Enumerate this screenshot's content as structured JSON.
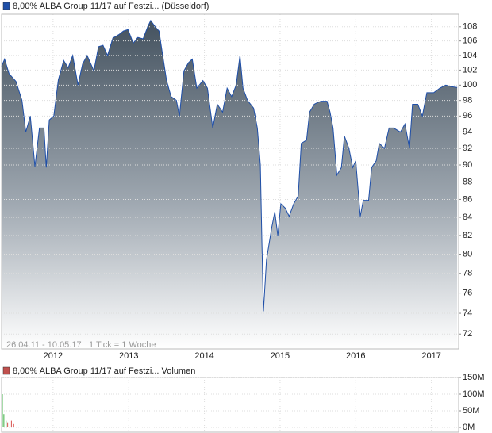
{
  "chart_data": [
    {
      "type": "area",
      "title": "8,00% ALBA Group 11/17 auf Festzi... (Düsseldorf)",
      "annotations": [
        "26.04.11 - 10.05.17",
        "1 Tick = 1 Woche"
      ],
      "color": "#1f4fa8",
      "log_scale": true,
      "grid": true,
      "xlim": [
        2011.32,
        2017.36
      ],
      "xticks": [
        2012,
        2013,
        2014,
        2015,
        2016,
        2017
      ],
      "ylim": [
        70.6,
        109.8
      ],
      "yticks": [
        72,
        74,
        76,
        78,
        80,
        82,
        84,
        86,
        88,
        90,
        92,
        94,
        96,
        98,
        100,
        102,
        104,
        106,
        108
      ],
      "x": [
        2011.32,
        2011.36,
        2011.42,
        2011.51,
        2011.59,
        2011.64,
        2011.7,
        2011.76,
        2011.82,
        2011.88,
        2011.91,
        2011.95,
        2012.01,
        2012.07,
        2012.14,
        2012.2,
        2012.26,
        2012.33,
        2012.39,
        2012.45,
        2012.54,
        2012.6,
        2012.66,
        2012.72,
        2012.79,
        2012.87,
        2012.93,
        2012.99,
        2013.06,
        2013.12,
        2013.19,
        2013.25,
        2013.29,
        2013.35,
        2013.4,
        2013.44,
        2013.5,
        2013.56,
        2013.63,
        2013.67,
        2013.73,
        2013.79,
        2013.84,
        2013.9,
        2013.98,
        2014.04,
        2014.11,
        2014.17,
        2014.24,
        2014.3,
        2014.36,
        2014.42,
        2014.47,
        2014.51,
        2014.57,
        2014.65,
        2014.7,
        2014.74,
        2014.76,
        2014.78,
        2014.82,
        2014.89,
        2014.93,
        2014.97,
        2015.01,
        2015.07,
        2015.12,
        2015.18,
        2015.24,
        2015.28,
        2015.35,
        2015.39,
        2015.45,
        2015.49,
        2015.54,
        2015.62,
        2015.66,
        2015.7,
        2015.75,
        2015.81,
        2015.85,
        2015.91,
        2015.96,
        2016.0,
        2016.06,
        2016.1,
        2016.17,
        2016.21,
        2016.27,
        2016.31,
        2016.38,
        2016.44,
        2016.5,
        2016.59,
        2016.65,
        2016.71,
        2016.75,
        2016.82,
        2016.88,
        2016.94,
        2017.03,
        2017.11,
        2017.19,
        2017.26,
        2017.34
      ],
      "values": [
        102.5,
        103.5,
        101.5,
        100.5,
        98,
        94,
        96,
        89.8,
        94.5,
        94.5,
        89.7,
        95.5,
        96,
        100.7,
        103.3,
        102.3,
        104,
        100,
        102.8,
        104,
        101.9,
        105.2,
        105.4,
        104,
        106.4,
        106.9,
        107.4,
        107.6,
        105.7,
        106.5,
        106.3,
        108,
        108.9,
        108,
        107.4,
        104.6,
        100.6,
        98.5,
        98,
        96,
        101.9,
        103,
        103.5,
        99.6,
        100.6,
        99.6,
        94.5,
        97.5,
        96.5,
        99.6,
        98.5,
        100,
        104,
        99.6,
        98,
        97,
        94.5,
        90,
        81,
        74.2,
        79.4,
        82.9,
        84.6,
        82,
        85.5,
        85,
        84.1,
        85.5,
        86.4,
        92.6,
        93,
        96.5,
        97.5,
        97.7,
        97.9,
        97.9,
        96.5,
        94.5,
        88.8,
        89.7,
        93.5,
        92,
        89.7,
        90.5,
        84.1,
        85.9,
        85.9,
        89.7,
        90.5,
        92.6,
        92,
        94.5,
        94.5,
        94,
        95,
        92,
        97.5,
        97.5,
        96,
        99,
        99,
        99.6,
        100,
        99.8,
        99.7
      ]
    },
    {
      "type": "bar",
      "title": "8,00% ALBA Group 11/17 auf Festzi... Volumen",
      "legend_color": "#c0504d",
      "grid": true,
      "xlim": [
        2011.32,
        2017.36
      ],
      "ylim": [
        0,
        150
      ],
      "yticks": [
        {
          "value": 0,
          "label": "0M"
        },
        {
          "value": 50,
          "label": "50M"
        },
        {
          "value": 100,
          "label": "100M"
        },
        {
          "value": 150,
          "label": "150M"
        }
      ],
      "x": [
        2011.33,
        2011.35,
        2011.38,
        2011.4,
        2011.43,
        2011.45,
        2011.48
      ],
      "values": [
        100,
        40,
        20,
        15,
        40,
        20,
        10
      ],
      "colors": [
        "#3cb043",
        "#3cb043",
        "#3cb043",
        "#d9534f",
        "#d9534f",
        "#d9534f",
        "#d9534f"
      ]
    }
  ]
}
